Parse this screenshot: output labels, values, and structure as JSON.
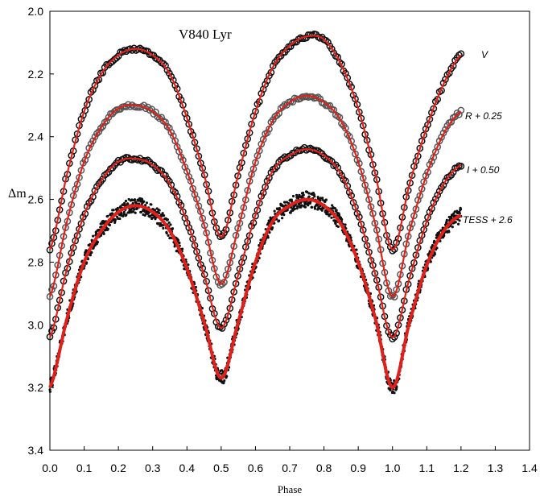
{
  "chart_data": {
    "type": "scatter",
    "title": "V840 Lyr",
    "xlabel": "Phase",
    "ylabel": "Δm",
    "xlim": [
      0.0,
      1.4
    ],
    "ylim": [
      2.0,
      3.4
    ],
    "y_inverted": true,
    "xticks": [
      "0.0",
      "0.1",
      "0.2",
      "0.3",
      "0.4",
      "0.5",
      "0.6",
      "0.7",
      "0.8",
      "0.9",
      "1.0",
      "1.1",
      "1.2",
      "1.3",
      "1.4"
    ],
    "yticks": [
      "2.0",
      "2.2",
      "2.4",
      "2.6",
      "2.8",
      "3.0",
      "3.2",
      "3.4"
    ],
    "grid": false,
    "fit_color": "#e0201b",
    "phase_samples": [
      0.0,
      0.05,
      0.1,
      0.15,
      0.2,
      0.25,
      0.3,
      0.35,
      0.4,
      0.45,
      0.5,
      0.55,
      0.6,
      0.65,
      0.7,
      0.75,
      0.8,
      0.85,
      0.9,
      0.95,
      1.0,
      1.05,
      1.1,
      1.15,
      1.2
    ],
    "series": [
      {
        "name": "V",
        "label": "V",
        "marker": "open-circle",
        "marker_color": "#111111",
        "values": [
          2.76,
          2.52,
          2.32,
          2.2,
          2.14,
          2.12,
          2.14,
          2.2,
          2.34,
          2.52,
          2.72,
          2.52,
          2.32,
          2.18,
          2.11,
          2.08,
          2.09,
          2.17,
          2.31,
          2.52,
          2.76,
          2.55,
          2.37,
          2.23,
          2.14
        ]
      },
      {
        "name": "R + 0.25",
        "label": "R + 0.25",
        "marker": "open-circle",
        "marker_color": "#555555",
        "values": [
          2.91,
          2.67,
          2.48,
          2.37,
          2.31,
          2.3,
          2.32,
          2.38,
          2.51,
          2.68,
          2.87,
          2.69,
          2.48,
          2.35,
          2.29,
          2.27,
          2.29,
          2.35,
          2.48,
          2.68,
          2.91,
          2.7,
          2.52,
          2.39,
          2.32
        ]
      },
      {
        "name": "I + 0.50",
        "label": "I + 0.50",
        "marker": "open-circle",
        "marker_color": "#111111",
        "values": [
          3.04,
          2.82,
          2.65,
          2.54,
          2.48,
          2.47,
          2.49,
          2.55,
          2.67,
          2.84,
          3.01,
          2.84,
          2.65,
          2.51,
          2.46,
          2.44,
          2.46,
          2.52,
          2.65,
          2.84,
          3.04,
          2.85,
          2.67,
          2.55,
          2.49
        ]
      },
      {
        "name": "TESS + 2.6",
        "label": "TESS + 2.6",
        "marker": "dot",
        "marker_color": "#111111",
        "values": [
          3.2,
          2.98,
          2.8,
          2.7,
          2.64,
          2.62,
          2.64,
          2.7,
          2.82,
          2.99,
          3.17,
          2.99,
          2.8,
          2.67,
          2.62,
          2.6,
          2.62,
          2.68,
          2.8,
          2.98,
          3.2,
          2.99,
          2.81,
          2.7,
          2.65
        ]
      }
    ]
  }
}
